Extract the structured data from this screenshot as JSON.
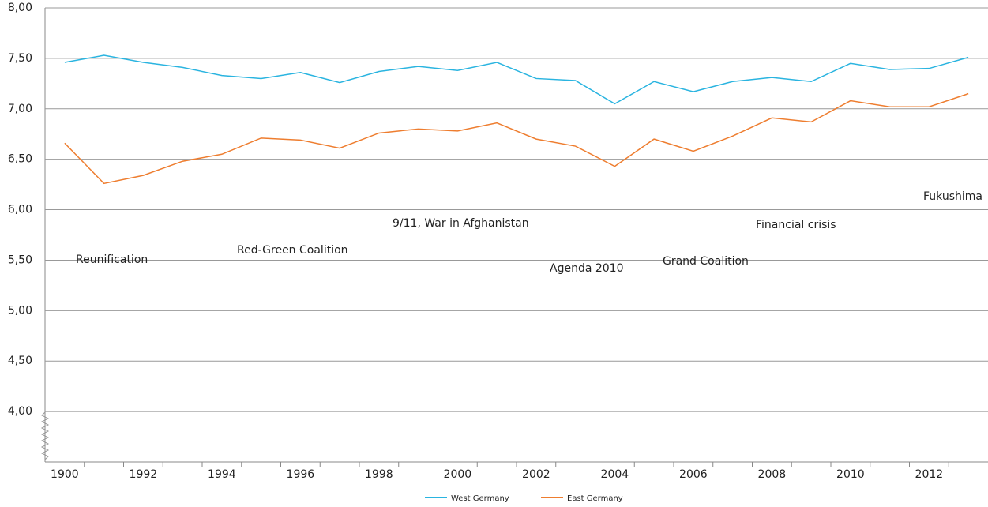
{
  "chart_data": {
    "type": "line",
    "categories": [
      "1900",
      null,
      "1992",
      null,
      "1994",
      null,
      "1996",
      null,
      "1998",
      null,
      "2000",
      null,
      "2002",
      null,
      "2004",
      null,
      "2006",
      null,
      "2008",
      null,
      "2010",
      null,
      "2012",
      null
    ],
    "series": [
      {
        "name": "West Germany",
        "color": "#2ab4e0",
        "values": [
          7.46,
          7.53,
          7.46,
          7.41,
          7.33,
          7.3,
          7.36,
          7.26,
          7.37,
          7.42,
          7.38,
          7.46,
          7.3,
          7.28,
          7.05,
          7.27,
          7.17,
          7.27,
          7.31,
          7.27,
          7.45,
          7.39,
          7.4,
          7.51
        ]
      },
      {
        "name": "East Germany",
        "color": "#ee7d2f",
        "values": [
          6.66,
          6.26,
          6.34,
          6.48,
          6.55,
          6.71,
          6.69,
          6.61,
          6.76,
          6.8,
          6.78,
          6.86,
          6.7,
          6.63,
          6.43,
          6.7,
          6.58,
          6.73,
          6.91,
          6.87,
          7.08,
          7.02,
          7.02,
          7.15
        ]
      }
    ],
    "ylim": [
      3.5,
      8
    ],
    "yticks": [
      {
        "value": 4,
        "label": "4,00"
      },
      {
        "value": 4.5,
        "label": "4,50"
      },
      {
        "value": 5,
        "label": "5,00"
      },
      {
        "value": 5.5,
        "label": "5,50"
      },
      {
        "value": 6,
        "label": "6,00"
      },
      {
        "value": 6.5,
        "label": "6,50"
      },
      {
        "value": 7,
        "label": "7,00"
      },
      {
        "value": 7.5,
        "label": "7,50"
      },
      {
        "value": 8,
        "label": "8,00"
      }
    ],
    "grid": true,
    "legend": "bottom",
    "annotations": [
      "Reunification",
      "Red-Green Coalition",
      "9/11, War in Afghanistan",
      "Agenda 2010",
      "Grand Coalition",
      "Financial crisis",
      "Fukushima"
    ]
  }
}
